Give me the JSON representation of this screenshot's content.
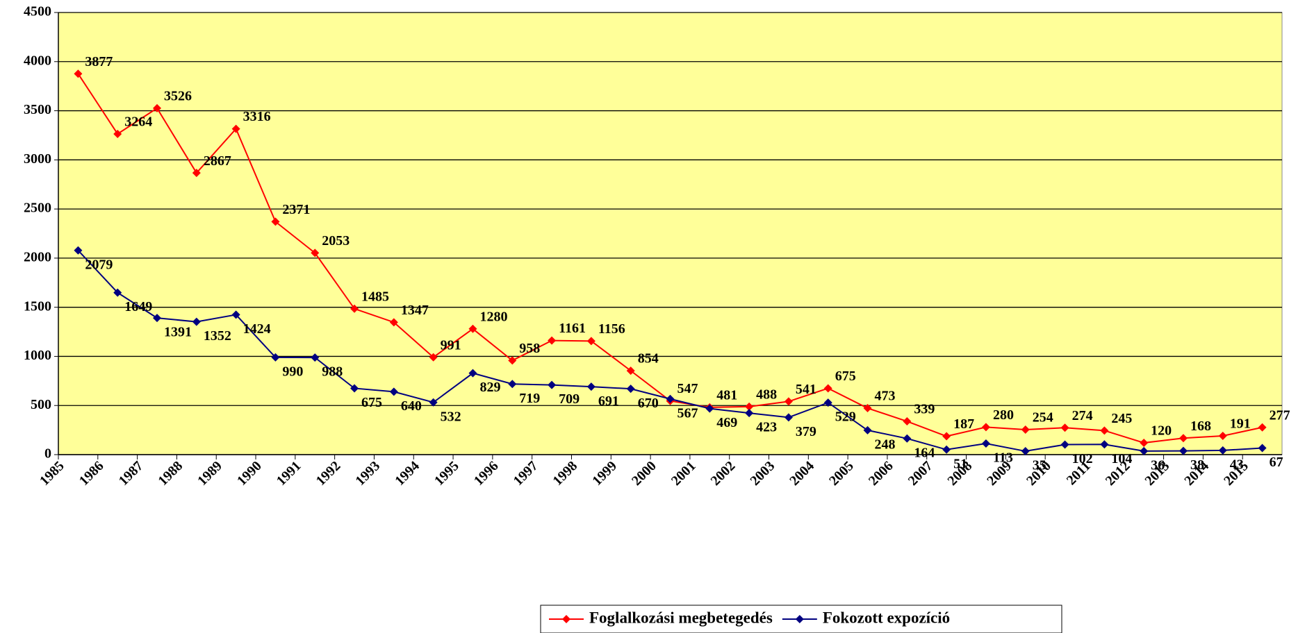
{
  "chart_data": {
    "type": "line",
    "categories": [
      "1985",
      "1986",
      "1987",
      "1988",
      "1989",
      "1990",
      "1991",
      "1992",
      "1993",
      "1994",
      "1995",
      "1996",
      "1997",
      "1998",
      "1999",
      "2000",
      "2001",
      "2002",
      "2003",
      "2004",
      "2005",
      "2006",
      "2007",
      "2008",
      "2009",
      "2010",
      "2011",
      "2012",
      "2013",
      "2014",
      "2015"
    ],
    "series": [
      {
        "name": "Foglalkozási megbetegedés",
        "color": "#ff0000",
        "values": [
          3877,
          3264,
          3526,
          2867,
          3316,
          2371,
          2053,
          1485,
          1347,
          991,
          1280,
          958,
          1161,
          1156,
          854,
          547,
          481,
          488,
          541,
          675,
          473,
          339,
          187,
          280,
          254,
          274,
          245,
          120,
          168,
          191,
          277
        ]
      },
      {
        "name": "Fokozott expozíció",
        "color": "#000080",
        "values": [
          2079,
          1649,
          1391,
          1352,
          1424,
          990,
          988,
          675,
          640,
          532,
          829,
          719,
          709,
          691,
          670,
          567,
          469,
          423,
          379,
          529,
          248,
          164,
          51,
          113,
          35,
          102,
          104,
          36,
          38,
          43,
          67
        ]
      }
    ],
    "ylim": [
      0,
      4500
    ],
    "yticks": [
      0,
      500,
      1000,
      1500,
      2000,
      2500,
      3000,
      3500,
      4000,
      4500
    ],
    "grid": true,
    "background": "#ffff99",
    "legend": "bottom"
  }
}
